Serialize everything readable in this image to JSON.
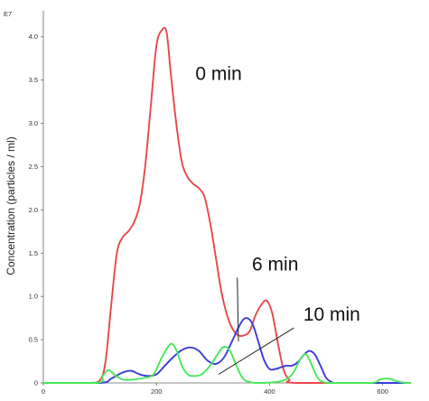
{
  "chart_data": {
    "type": "line",
    "title": "",
    "xlabel": "",
    "ylabel": "Concentration (particles / ml)",
    "y_multiplier_label": "E7",
    "xlim": [
      0,
      650
    ],
    "ylim": [
      0,
      4.3
    ],
    "x_ticks": [
      0,
      200,
      400,
      600
    ],
    "x_tick_labels": [
      "0",
      "200",
      "400",
      "600"
    ],
    "y_ticks": [
      0,
      0.5,
      1.0,
      1.5,
      2.0,
      2.5,
      3.0,
      3.5,
      4.0
    ],
    "y_tick_labels": [
      "0",
      "0.5",
      "1.0",
      "1.5",
      "2.0",
      "2.5",
      "3.0",
      "3.5",
      "4.0"
    ],
    "grid": false,
    "legend": "none",
    "series": [
      {
        "name": "0 min",
        "color": "#e8474b",
        "points": [
          [
            0,
            0
          ],
          [
            80,
            0
          ],
          [
            100,
            0.03
          ],
          [
            110,
            0.25
          ],
          [
            120,
            0.9
          ],
          [
            130,
            1.5
          ],
          [
            140,
            1.68
          ],
          [
            150,
            1.75
          ],
          [
            160,
            1.85
          ],
          [
            170,
            2.05
          ],
          [
            180,
            2.5
          ],
          [
            190,
            3.2
          ],
          [
            200,
            3.9
          ],
          [
            210,
            4.08
          ],
          [
            218,
            4.05
          ],
          [
            225,
            3.6
          ],
          [
            235,
            3.0
          ],
          [
            245,
            2.55
          ],
          [
            255,
            2.38
          ],
          [
            265,
            2.3
          ],
          [
            275,
            2.25
          ],
          [
            285,
            2.15
          ],
          [
            295,
            1.85
          ],
          [
            305,
            1.45
          ],
          [
            315,
            1.05
          ],
          [
            325,
            0.78
          ],
          [
            335,
            0.62
          ],
          [
            345,
            0.55
          ],
          [
            355,
            0.55
          ],
          [
            365,
            0.6
          ],
          [
            375,
            0.78
          ],
          [
            385,
            0.9
          ],
          [
            395,
            0.95
          ],
          [
            405,
            0.8
          ],
          [
            415,
            0.45
          ],
          [
            425,
            0.15
          ],
          [
            435,
            0.04
          ],
          [
            450,
            0
          ],
          [
            650,
            0
          ]
        ]
      },
      {
        "name": "6 min",
        "color": "#3b3bdc",
        "points": [
          [
            0,
            0
          ],
          [
            100,
            0
          ],
          [
            120,
            0.05
          ],
          [
            140,
            0.12
          ],
          [
            155,
            0.14
          ],
          [
            170,
            0.1
          ],
          [
            185,
            0.08
          ],
          [
            200,
            0.1
          ],
          [
            215,
            0.2
          ],
          [
            230,
            0.3
          ],
          [
            245,
            0.38
          ],
          [
            260,
            0.41
          ],
          [
            275,
            0.37
          ],
          [
            290,
            0.26
          ],
          [
            305,
            0.22
          ],
          [
            320,
            0.3
          ],
          [
            335,
            0.5
          ],
          [
            350,
            0.7
          ],
          [
            360,
            0.75
          ],
          [
            370,
            0.68
          ],
          [
            380,
            0.48
          ],
          [
            390,
            0.27
          ],
          [
            400,
            0.16
          ],
          [
            410,
            0.16
          ],
          [
            420,
            0.18
          ],
          [
            430,
            0.2
          ],
          [
            440,
            0.2
          ],
          [
            450,
            0.24
          ],
          [
            460,
            0.32
          ],
          [
            470,
            0.37
          ],
          [
            480,
            0.33
          ],
          [
            490,
            0.2
          ],
          [
            500,
            0.06
          ],
          [
            510,
            0.01
          ],
          [
            520,
            0
          ],
          [
            650,
            0
          ]
        ]
      },
      {
        "name": "10 min",
        "color": "#47e85a",
        "points": [
          [
            0,
            0
          ],
          [
            95,
            0
          ],
          [
            105,
            0.08
          ],
          [
            115,
            0.15
          ],
          [
            125,
            0.1
          ],
          [
            140,
            0.04
          ],
          [
            160,
            0.04
          ],
          [
            180,
            0.06
          ],
          [
            195,
            0.1
          ],
          [
            210,
            0.3
          ],
          [
            225,
            0.45
          ],
          [
            235,
            0.38
          ],
          [
            245,
            0.2
          ],
          [
            255,
            0.1
          ],
          [
            265,
            0.08
          ],
          [
            280,
            0.1
          ],
          [
            295,
            0.2
          ],
          [
            310,
            0.35
          ],
          [
            320,
            0.42
          ],
          [
            330,
            0.37
          ],
          [
            340,
            0.22
          ],
          [
            350,
            0.08
          ],
          [
            360,
            0.02
          ],
          [
            380,
            0
          ],
          [
            420,
            0.02
          ],
          [
            440,
            0.1
          ],
          [
            455,
            0.28
          ],
          [
            465,
            0.33
          ],
          [
            475,
            0.2
          ],
          [
            485,
            0.06
          ],
          [
            495,
            0.01
          ],
          [
            510,
            0
          ],
          [
            580,
            0
          ],
          [
            595,
            0.04
          ],
          [
            610,
            0.05
          ],
          [
            625,
            0.02
          ],
          [
            640,
            0
          ],
          [
            650,
            0
          ]
        ]
      }
    ],
    "annotations": [
      {
        "text": "0 min",
        "x": 310,
        "y": 3.5
      },
      {
        "text": "6 min",
        "x": 410,
        "y": 1.3,
        "arrow_to": [
          345,
          0.48
        ]
      },
      {
        "text": "10 min",
        "x": 510,
        "y": 0.72,
        "arrow_to": [
          310,
          0.1
        ]
      }
    ]
  }
}
